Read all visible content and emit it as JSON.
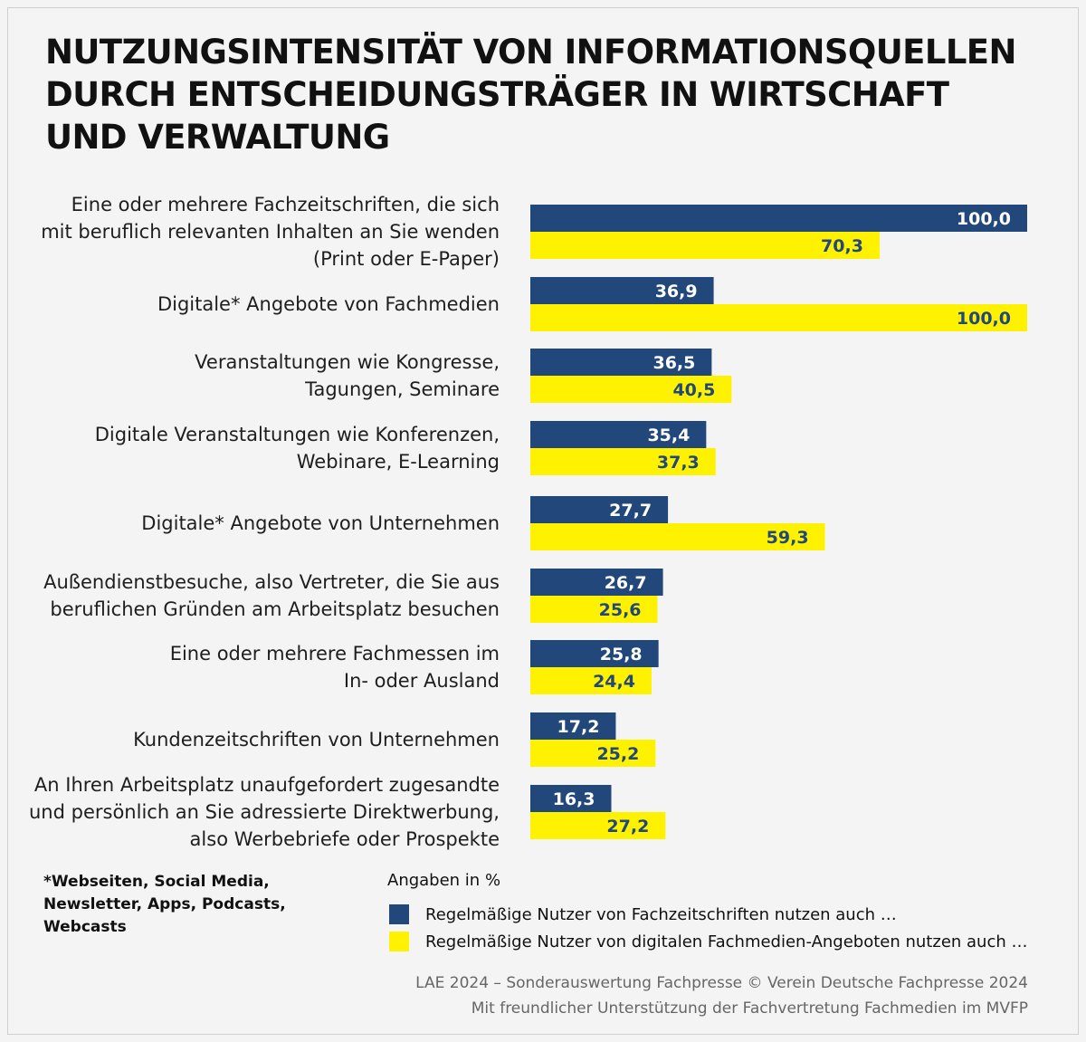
{
  "title": "NUTZUNGSINTENSITÄT VON INFORMATIONSQUELLEN\nDURCH ENTSCHEIDUNGSTRÄGER IN WIRTSCHAFT\nUND VERWALTUNG",
  "colors": {
    "blue": "#22477a",
    "yellow": "#fff200",
    "background": "#f4f4f4"
  },
  "chart_data": {
    "type": "bar",
    "orientation": "horizontal",
    "title": "NUTZUNGSINTENSITÄT VON INFORMATIONSQUELLEN DURCH ENTSCHEIDUNGSTRÄGER IN WIRTSCHAFT UND VERWALTUNG",
    "unit": "Angaben in %",
    "xlim": [
      0,
      100
    ],
    "grid": false,
    "legend_position": "bottom",
    "categories": [
      [
        "Eine oder mehrere Fachzeitschriften, die sich",
        "mit beruflich relevanten Inhalten an Sie wenden",
        "(Print oder E-Paper)"
      ],
      [
        "Digitale* Angebote von Fachmedien"
      ],
      [
        "Veranstaltungen wie Kongresse,",
        "Tagungen, Seminare"
      ],
      [
        "Digitale Veranstaltungen wie Konferenzen,",
        "Webinare, E-Learning"
      ],
      [
        "Digitale* Angebote von Unternehmen"
      ],
      [
        "Außendienstbesuche, also Vertreter, die Sie aus",
        "beruflichen Gründen am Arbeitsplatz besuchen"
      ],
      [
        "Eine oder mehrere Fachmessen im",
        "In- oder Ausland"
      ],
      [
        "Kundenzeitschriften von Unternehmen"
      ],
      [
        "An Ihren Arbeitsplatz unaufgefordert zugesandte",
        "und persönlich an Sie adressierte Direktwerbung,",
        "also Werbebriefe oder Prospekte"
      ]
    ],
    "series": [
      {
        "name": "Regelmäßige Nutzer von Fachzeitschriften nutzen auch …",
        "color": "#22477a",
        "values": [
          100.0,
          36.9,
          36.5,
          35.4,
          27.7,
          26.7,
          25.8,
          17.2,
          16.3
        ],
        "labels": [
          "100,0",
          "36,9",
          "36,5",
          "35,4",
          "27,7",
          "26,7",
          "25,8",
          "17,2",
          "16,3"
        ]
      },
      {
        "name": "Regelmäßige Nutzer von digitalen Fachmedien-Angeboten nutzen auch …",
        "color": "#fff200",
        "values": [
          70.3,
          100.0,
          40.5,
          37.3,
          59.3,
          25.6,
          24.4,
          25.2,
          27.2
        ],
        "labels": [
          "70,3",
          "100,0",
          "40,5",
          "37,3",
          "59,3",
          "25,6",
          "24,4",
          "25,2",
          "27,2"
        ]
      }
    ]
  },
  "footnote": "*Webseiten, Social Media,\nNewsletter, Apps, Podcasts,\nWebcasts",
  "unit_label": "Angaben in %",
  "source": {
    "line1": "LAE 2024 – Sonderauswertung Fachpresse © Verein Deutsche Fachpresse 2024",
    "line2": "Mit freundlicher Unterstützung der Fachvertretung Fachmedien im MVFP"
  }
}
